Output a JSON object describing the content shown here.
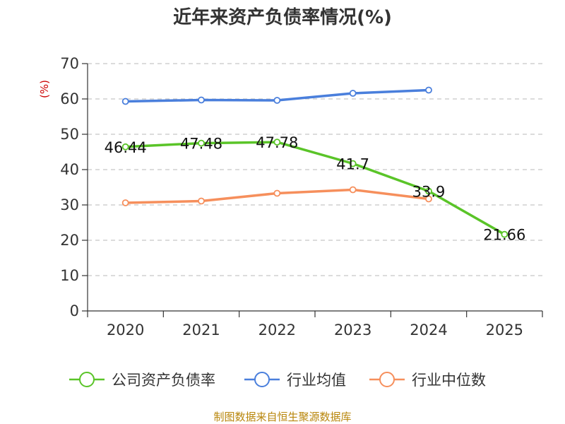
{
  "chart_data": {
    "type": "line",
    "title": "近年来资产负债率情况(%)",
    "ylabel": "(%)",
    "xlabel": "",
    "ylim": [
      0,
      70
    ],
    "yticks": [
      0,
      10,
      20,
      30,
      40,
      50,
      60,
      70
    ],
    "categories": [
      "2020",
      "2021",
      "2022",
      "2023",
      "2024",
      "2025"
    ],
    "grid": true,
    "legend_position": "bottom",
    "series": [
      {
        "name": "公司资产负债率",
        "color": "#5ac428",
        "values": [
          46.44,
          47.48,
          47.78,
          41.7,
          33.9,
          21.66
        ],
        "data_labels": [
          "46.44",
          "47.48",
          "47.78",
          "41.7",
          "33.9",
          "21.66"
        ]
      },
      {
        "name": "行业均值",
        "color": "#4a7fdc",
        "values": [
          59.3,
          59.7,
          59.6,
          61.6,
          62.5,
          null
        ]
      },
      {
        "name": "行业中位数",
        "color": "#f68f5c",
        "values": [
          30.6,
          31.1,
          33.3,
          34.3,
          31.7,
          null
        ]
      }
    ],
    "source": "制图数据来自恒生聚源数据库"
  }
}
